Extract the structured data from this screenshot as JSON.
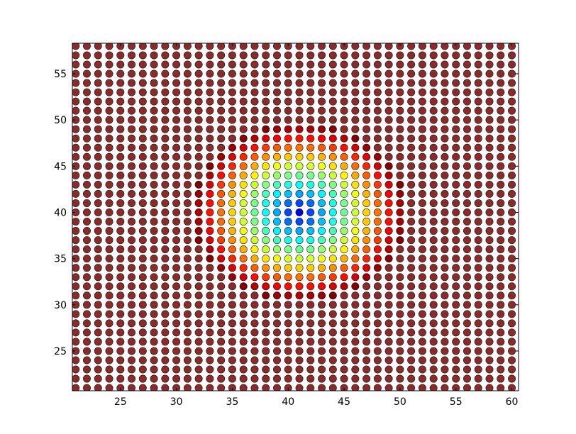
{
  "chart_data": {
    "type": "scatter",
    "title": "",
    "xlabel": "",
    "ylabel": "",
    "xlim": [
      20.7,
      60.6
    ],
    "ylim": [
      20.7,
      58.3
    ],
    "grid": false,
    "legend": "none",
    "colormap": "jet",
    "x_ticks": [
      25,
      30,
      35,
      40,
      45,
      50,
      55,
      60
    ],
    "y_ticks": [
      25,
      30,
      35,
      40,
      45,
      50,
      55
    ],
    "x_tick_labels": [
      "25",
      "30",
      "35",
      "40",
      "45",
      "50",
      "55",
      "60"
    ],
    "y_tick_labels": [
      "25",
      "30",
      "35",
      "40",
      "45",
      "50",
      "55"
    ],
    "grid_x_range": [
      21,
      60,
      1
    ],
    "grid_y_range": [
      21,
      58,
      1
    ],
    "color_field": {
      "description": "radial distance from center, clipped at max",
      "center": [
        41,
        40
      ],
      "max_radius": 9.5
    },
    "colors": {
      "background": "#ffffff",
      "frame": "#000000",
      "far_marker": "#8b2a2a",
      "marker_edge": "#1a1a1a"
    }
  }
}
